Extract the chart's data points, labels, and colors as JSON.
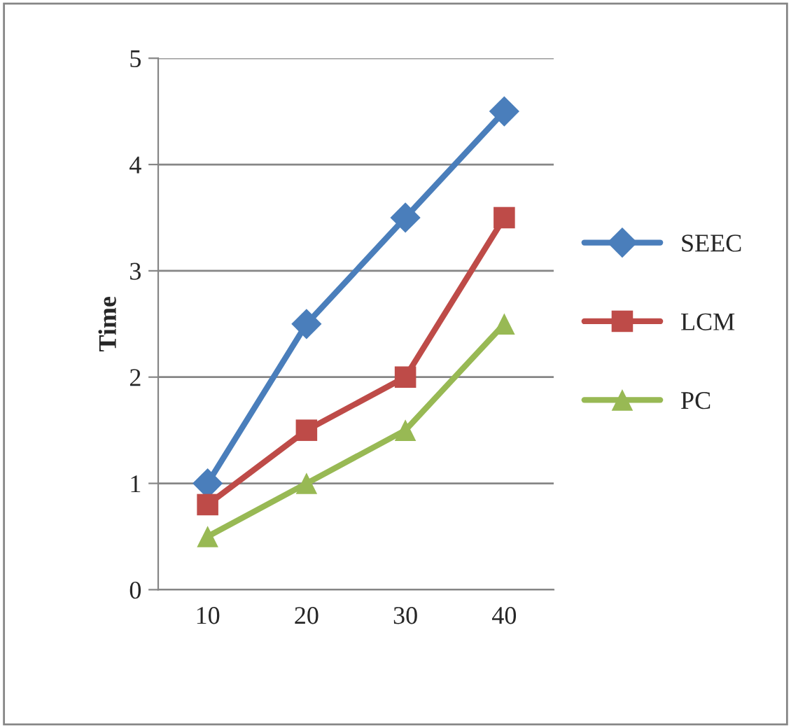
{
  "chart_data": {
    "type": "line",
    "ylabel": "Time",
    "categories": [
      "10",
      "20",
      "30",
      "40"
    ],
    "series": [
      {
        "name": "SEEC",
        "color": "#4a7ebb",
        "marker": "diamond",
        "values": [
          1.0,
          2.5,
          3.5,
          4.5
        ]
      },
      {
        "name": "LCM",
        "color": "#be4b48",
        "marker": "square",
        "values": [
          0.8,
          1.5,
          2.0,
          3.5
        ]
      },
      {
        "name": "PC",
        "color": "#98b954",
        "marker": "triangle",
        "values": [
          0.5,
          1.0,
          1.5,
          2.5
        ]
      }
    ],
    "ylim": [
      0,
      5
    ],
    "yticks": [
      0,
      1,
      2,
      3,
      4,
      5
    ],
    "grid": "y",
    "legend": "right"
  }
}
